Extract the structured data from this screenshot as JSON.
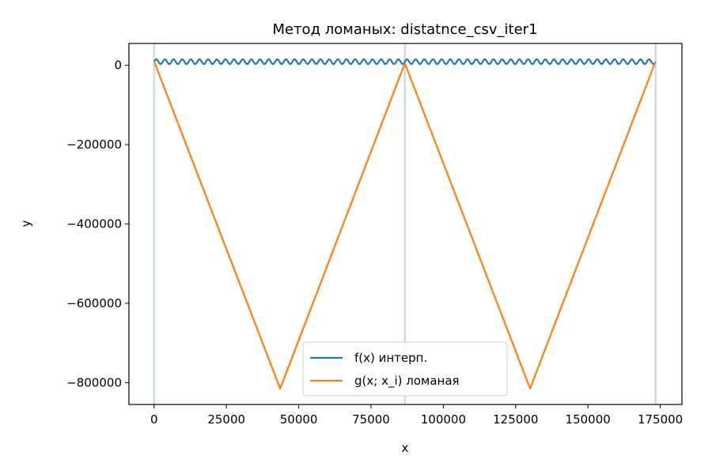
{
  "chart_data": {
    "type": "line",
    "title": "Метод ломаных: distatnce_csv_iter1",
    "xlabel": "x",
    "ylabel": "y",
    "xlim": [
      -8700,
      182500
    ],
    "ylim": [
      -855000,
      55000
    ],
    "xticks": [
      0,
      25000,
      50000,
      75000,
      100000,
      125000,
      150000,
      175000
    ],
    "xtick_labels": [
      "0",
      "25000",
      "50000",
      "75000",
      "100000",
      "125000",
      "150000",
      "175000"
    ],
    "yticks": [
      0,
      -200000,
      -400000,
      -600000,
      -800000
    ],
    "ytick_labels": [
      "0",
      "−200000",
      "−400000",
      "−600000",
      "−800000"
    ],
    "grid": false,
    "legend_position": "lower-center",
    "vertical_markers": [
      0,
      86700,
      173400
    ],
    "series": [
      {
        "name": "f(x) интерп.",
        "color": "#1f77b4",
        "kind": "oscillation",
        "x_start": 0,
        "x_end": 173400,
        "center": 9000,
        "amplitude": 6000,
        "cycles": 58,
        "samples": 1400
      },
      {
        "name": "g(x; x_i) ломаная",
        "color": "#ff7f0e",
        "kind": "polyline",
        "x": [
          0,
          43600,
          86700,
          130000,
          173400
        ],
        "y": [
          10000,
          -815000,
          5000,
          -815000,
          10000
        ]
      }
    ]
  }
}
